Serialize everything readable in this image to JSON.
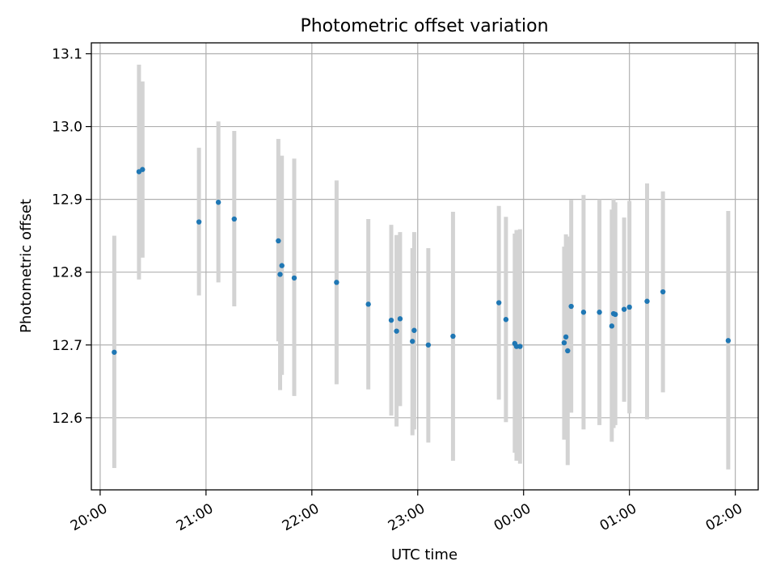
{
  "chart_data": {
    "type": "scatter",
    "title": "Photometric offset variation",
    "xlabel": "UTC time",
    "ylabel": "Photometric offset",
    "grid": true,
    "x_axis_kind": "time",
    "xlim": [
      "19:55",
      "02:13"
    ],
    "ylim": [
      12.501,
      13.115
    ],
    "x_ticks": [
      "20:00",
      "21:00",
      "22:00",
      "23:00",
      "00:00",
      "01:00",
      "02:00"
    ],
    "y_ticks": [
      12.6,
      12.7,
      12.8,
      12.9,
      13.0,
      13.1
    ],
    "y_tick_labels": [
      "12.6",
      "12.7",
      "12.8",
      "12.9",
      "13.0",
      "13.1"
    ],
    "colors": {
      "marker": "#1f77b4",
      "errorbar": "#d3d3d3"
    },
    "points": [
      {
        "t": "20:08",
        "y": 12.69,
        "lo": 12.531,
        "hi": 12.85
      },
      {
        "t": "20:22",
        "y": 12.938,
        "lo": 12.79,
        "hi": 13.085
      },
      {
        "t": "20:24",
        "y": 12.941,
        "lo": 12.82,
        "hi": 13.062
      },
      {
        "t": "20:56",
        "y": 12.869,
        "lo": 12.768,
        "hi": 12.971
      },
      {
        "t": "21:07",
        "y": 12.896,
        "lo": 12.786,
        "hi": 13.007
      },
      {
        "t": "21:16",
        "y": 12.873,
        "lo": 12.753,
        "hi": 12.994
      },
      {
        "t": "21:41",
        "y": 12.843,
        "lo": 12.705,
        "hi": 12.983
      },
      {
        "t": "21:42",
        "y": 12.797,
        "lo": 12.638,
        "hi": 12.955
      },
      {
        "t": "21:43",
        "y": 12.809,
        "lo": 12.659,
        "hi": 12.96
      },
      {
        "t": "21:50",
        "y": 12.792,
        "lo": 12.63,
        "hi": 12.956
      },
      {
        "t": "22:14",
        "y": 12.786,
        "lo": 12.646,
        "hi": 12.926
      },
      {
        "t": "22:32",
        "y": 12.756,
        "lo": 12.639,
        "hi": 12.873
      },
      {
        "t": "22:45",
        "y": 12.734,
        "lo": 12.603,
        "hi": 12.865
      },
      {
        "t": "22:48",
        "y": 12.719,
        "lo": 12.588,
        "hi": 12.851
      },
      {
        "t": "22:50",
        "y": 12.736,
        "lo": 12.616,
        "hi": 12.855
      },
      {
        "t": "22:57",
        "y": 12.705,
        "lo": 12.576,
        "hi": 12.833
      },
      {
        "t": "22:58",
        "y": 12.72,
        "lo": 12.584,
        "hi": 12.855
      },
      {
        "t": "23:06",
        "y": 12.7,
        "lo": 12.566,
        "hi": 12.833
      },
      {
        "t": "23:20",
        "y": 12.712,
        "lo": 12.541,
        "hi": 12.883
      },
      {
        "t": "23:46",
        "y": 12.758,
        "lo": 12.625,
        "hi": 12.891
      },
      {
        "t": "23:50",
        "y": 12.735,
        "lo": 12.594,
        "hi": 12.876
      },
      {
        "t": "23:55",
        "y": 12.702,
        "lo": 12.552,
        "hi": 12.853
      },
      {
        "t": "23:56",
        "y": 12.698,
        "lo": 12.541,
        "hi": 12.858
      },
      {
        "t": "23:58",
        "y": 12.698,
        "lo": 12.537,
        "hi": 12.859
      },
      {
        "t": "00:23",
        "y": 12.703,
        "lo": 12.57,
        "hi": 12.835
      },
      {
        "t": "00:24",
        "y": 12.711,
        "lo": 12.573,
        "hi": 12.852
      },
      {
        "t": "00:25",
        "y": 12.692,
        "lo": 12.535,
        "hi": 12.849
      },
      {
        "t": "00:27",
        "y": 12.753,
        "lo": 12.607,
        "hi": 12.899
      },
      {
        "t": "00:34",
        "y": 12.745,
        "lo": 12.584,
        "hi": 12.906
      },
      {
        "t": "00:43",
        "y": 12.745,
        "lo": 12.59,
        "hi": 12.9
      },
      {
        "t": "00:50",
        "y": 12.726,
        "lo": 12.567,
        "hi": 12.886
      },
      {
        "t": "00:51",
        "y": 12.743,
        "lo": 12.586,
        "hi": 12.901
      },
      {
        "t": "00:52",
        "y": 12.742,
        "lo": 12.59,
        "hi": 12.896
      },
      {
        "t": "00:57",
        "y": 12.749,
        "lo": 12.622,
        "hi": 12.875
      },
      {
        "t": "01:00",
        "y": 12.752,
        "lo": 12.606,
        "hi": 12.898
      },
      {
        "t": "01:10",
        "y": 12.76,
        "lo": 12.598,
        "hi": 12.922
      },
      {
        "t": "01:19",
        "y": 12.773,
        "lo": 12.635,
        "hi": 12.911
      },
      {
        "t": "01:56",
        "y": 12.706,
        "lo": 12.529,
        "hi": 12.884
      }
    ]
  }
}
